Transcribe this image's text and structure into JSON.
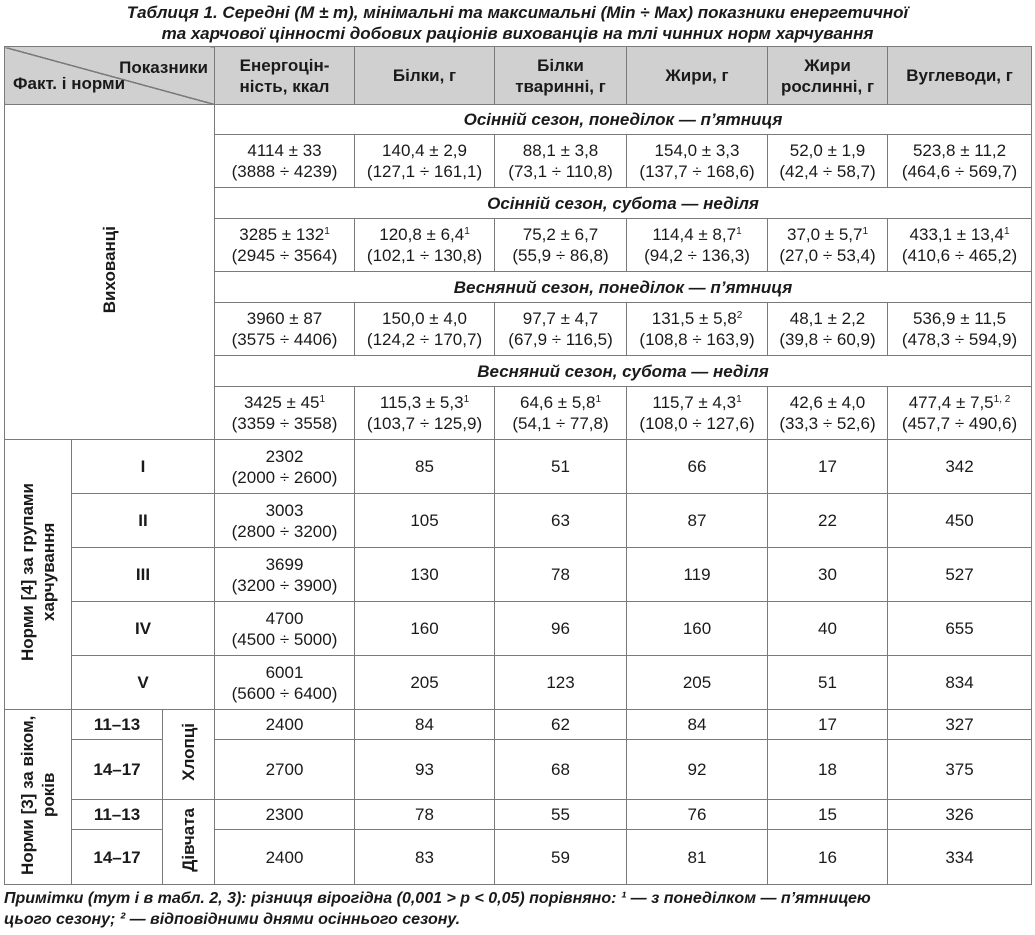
{
  "title": {
    "line1": "Таблиця 1. Середні (M ± m), мінімальні та максимальні (Min ÷ Max) показники енергетичної",
    "line2": "та харчової цінності добових раціонів вихованців на тлі чинних норм харчування"
  },
  "header": {
    "corner_top": "Показники",
    "corner_bottom": "Факт. і норми",
    "cols": [
      "Енергоцін-\nність, ккал",
      "Білки, г",
      "Білки\nтваринні, г",
      "Жири, г",
      "Жири\nрослинні, г",
      "Вуглеводи, г"
    ]
  },
  "group_labels": {
    "pupils": "Вихованці",
    "norms4": "Норми [4] за групами харчування",
    "norms3": "Норми [3] за віком, років",
    "boys": "Хлопці",
    "girls": "Дівчата"
  },
  "seasons": [
    {
      "label": "Осінній сезон, понеділок — п’ятниця",
      "cells": [
        {
          "mean": "4114 ± 33",
          "sup": "",
          "range": "(3888 ÷ 4239)"
        },
        {
          "mean": "140,4 ± 2,9",
          "sup": "",
          "range": "(127,1 ÷ 161,1)"
        },
        {
          "mean": "88,1 ± 3,8",
          "sup": "",
          "range": "(73,1 ÷ 110,8)"
        },
        {
          "mean": "154,0 ± 3,3",
          "sup": "",
          "range": "(137,7 ÷ 168,6)"
        },
        {
          "mean": "52,0 ± 1,9",
          "sup": "",
          "range": "(42,4 ÷ 58,7)"
        },
        {
          "mean": "523,8 ± 11,2",
          "sup": "",
          "range": "(464,6 ÷ 569,7)"
        }
      ]
    },
    {
      "label": "Осінній сезон, субота — неділя",
      "cells": [
        {
          "mean": "3285 ± 132",
          "sup": "1",
          "range": "(2945 ÷ 3564)"
        },
        {
          "mean": "120,8 ± 6,4",
          "sup": "1",
          "range": "(102,1 ÷ 130,8)"
        },
        {
          "mean": "75,2 ± 6,7",
          "sup": "",
          "range": "(55,9 ÷ 86,8)"
        },
        {
          "mean": "114,4 ± 8,7",
          "sup": "1",
          "range": "(94,2 ÷ 136,3)"
        },
        {
          "mean": "37,0 ± 5,7",
          "sup": "1",
          "range": "(27,0 ÷ 53,4)"
        },
        {
          "mean": "433,1 ± 13,4",
          "sup": "1",
          "range": "(410,6 ÷ 465,2)"
        }
      ]
    },
    {
      "label": "Весняний сезон, понеділок — п’ятниця",
      "cells": [
        {
          "mean": "3960 ± 87",
          "sup": "",
          "range": "(3575 ÷ 4406)"
        },
        {
          "mean": "150,0 ± 4,0",
          "sup": "",
          "range": "(124,2 ÷ 170,7)"
        },
        {
          "mean": "97,7 ± 4,7",
          "sup": "",
          "range": "(67,9 ÷ 116,5)"
        },
        {
          "mean": "131,5 ± 5,8",
          "sup": "2",
          "range": "(108,8 ÷ 163,9)"
        },
        {
          "mean": "48,1 ± 2,2",
          "sup": "",
          "range": "(39,8 ÷ 60,9)"
        },
        {
          "mean": "536,9 ± 11,5",
          "sup": "",
          "range": "(478,3 ÷ 594,9)"
        }
      ]
    },
    {
      "label": "Весняний сезон, субота — неділя",
      "cells": [
        {
          "mean": "3425 ± 45",
          "sup": "1",
          "range": "(3359 ÷ 3558)"
        },
        {
          "mean": "115,3 ± 5,3",
          "sup": "1",
          "range": "(103,7 ÷ 125,9)"
        },
        {
          "mean": "64,6 ± 5,8",
          "sup": "1",
          "range": "(54,1 ÷ 77,8)"
        },
        {
          "mean": "115,7 ± 4,3",
          "sup": "1",
          "range": "(108,0 ÷ 127,6)"
        },
        {
          "mean": "42,6 ± 4,0",
          "sup": "",
          "range": "(33,3 ÷ 52,6)"
        },
        {
          "mean": "477,4 ± 7,5",
          "sup": "1, 2",
          "range": "(457,7 ÷ 490,6)"
        }
      ]
    }
  ],
  "norms4": [
    {
      "group": "I",
      "energy": "2302",
      "range": "(2000 ÷ 2600)",
      "protein": "85",
      "animal_protein": "51",
      "fat": "66",
      "veg_fat": "17",
      "carbs": "342"
    },
    {
      "group": "II",
      "energy": "3003",
      "range": "(2800 ÷ 3200)",
      "protein": "105",
      "animal_protein": "63",
      "fat": "87",
      "veg_fat": "22",
      "carbs": "450"
    },
    {
      "group": "III",
      "energy": "3699",
      "range": "(3200 ÷ 3900)",
      "protein": "130",
      "animal_protein": "78",
      "fat": "119",
      "veg_fat": "30",
      "carbs": "527"
    },
    {
      "group": "IV",
      "energy": "4700",
      "range": "(4500 ÷ 5000)",
      "protein": "160",
      "animal_protein": "96",
      "fat": "160",
      "veg_fat": "40",
      "carbs": "655"
    },
    {
      "group": "V",
      "energy": "6001",
      "range": "(5600 ÷ 6400)",
      "protein": "205",
      "animal_protein": "123",
      "fat": "205",
      "veg_fat": "51",
      "carbs": "834"
    }
  ],
  "norms3": [
    {
      "age": "11–13",
      "energy": "2400",
      "protein": "84",
      "animal_protein": "62",
      "fat": "84",
      "veg_fat": "17",
      "carbs": "327"
    },
    {
      "age": "14–17",
      "energy": "2700",
      "protein": "93",
      "animal_protein": "68",
      "fat": "92",
      "veg_fat": "18",
      "carbs": "375"
    },
    {
      "age": "11–13",
      "energy": "2300",
      "protein": "78",
      "animal_protein": "55",
      "fat": "76",
      "veg_fat": "15",
      "carbs": "326"
    },
    {
      "age": "14–17",
      "energy": "2400",
      "protein": "83",
      "animal_protein": "59",
      "fat": "81",
      "veg_fat": "16",
      "carbs": "334"
    }
  ],
  "footnote": {
    "line1": "Примітки (тут і в табл. 2, 3): різниця вірогідна (0,001 > p < 0,05) порівняно: ¹ — з понеділком — п’ятницею",
    "line2": "цього сезону; ² — відповідними днями осіннього сезону."
  }
}
